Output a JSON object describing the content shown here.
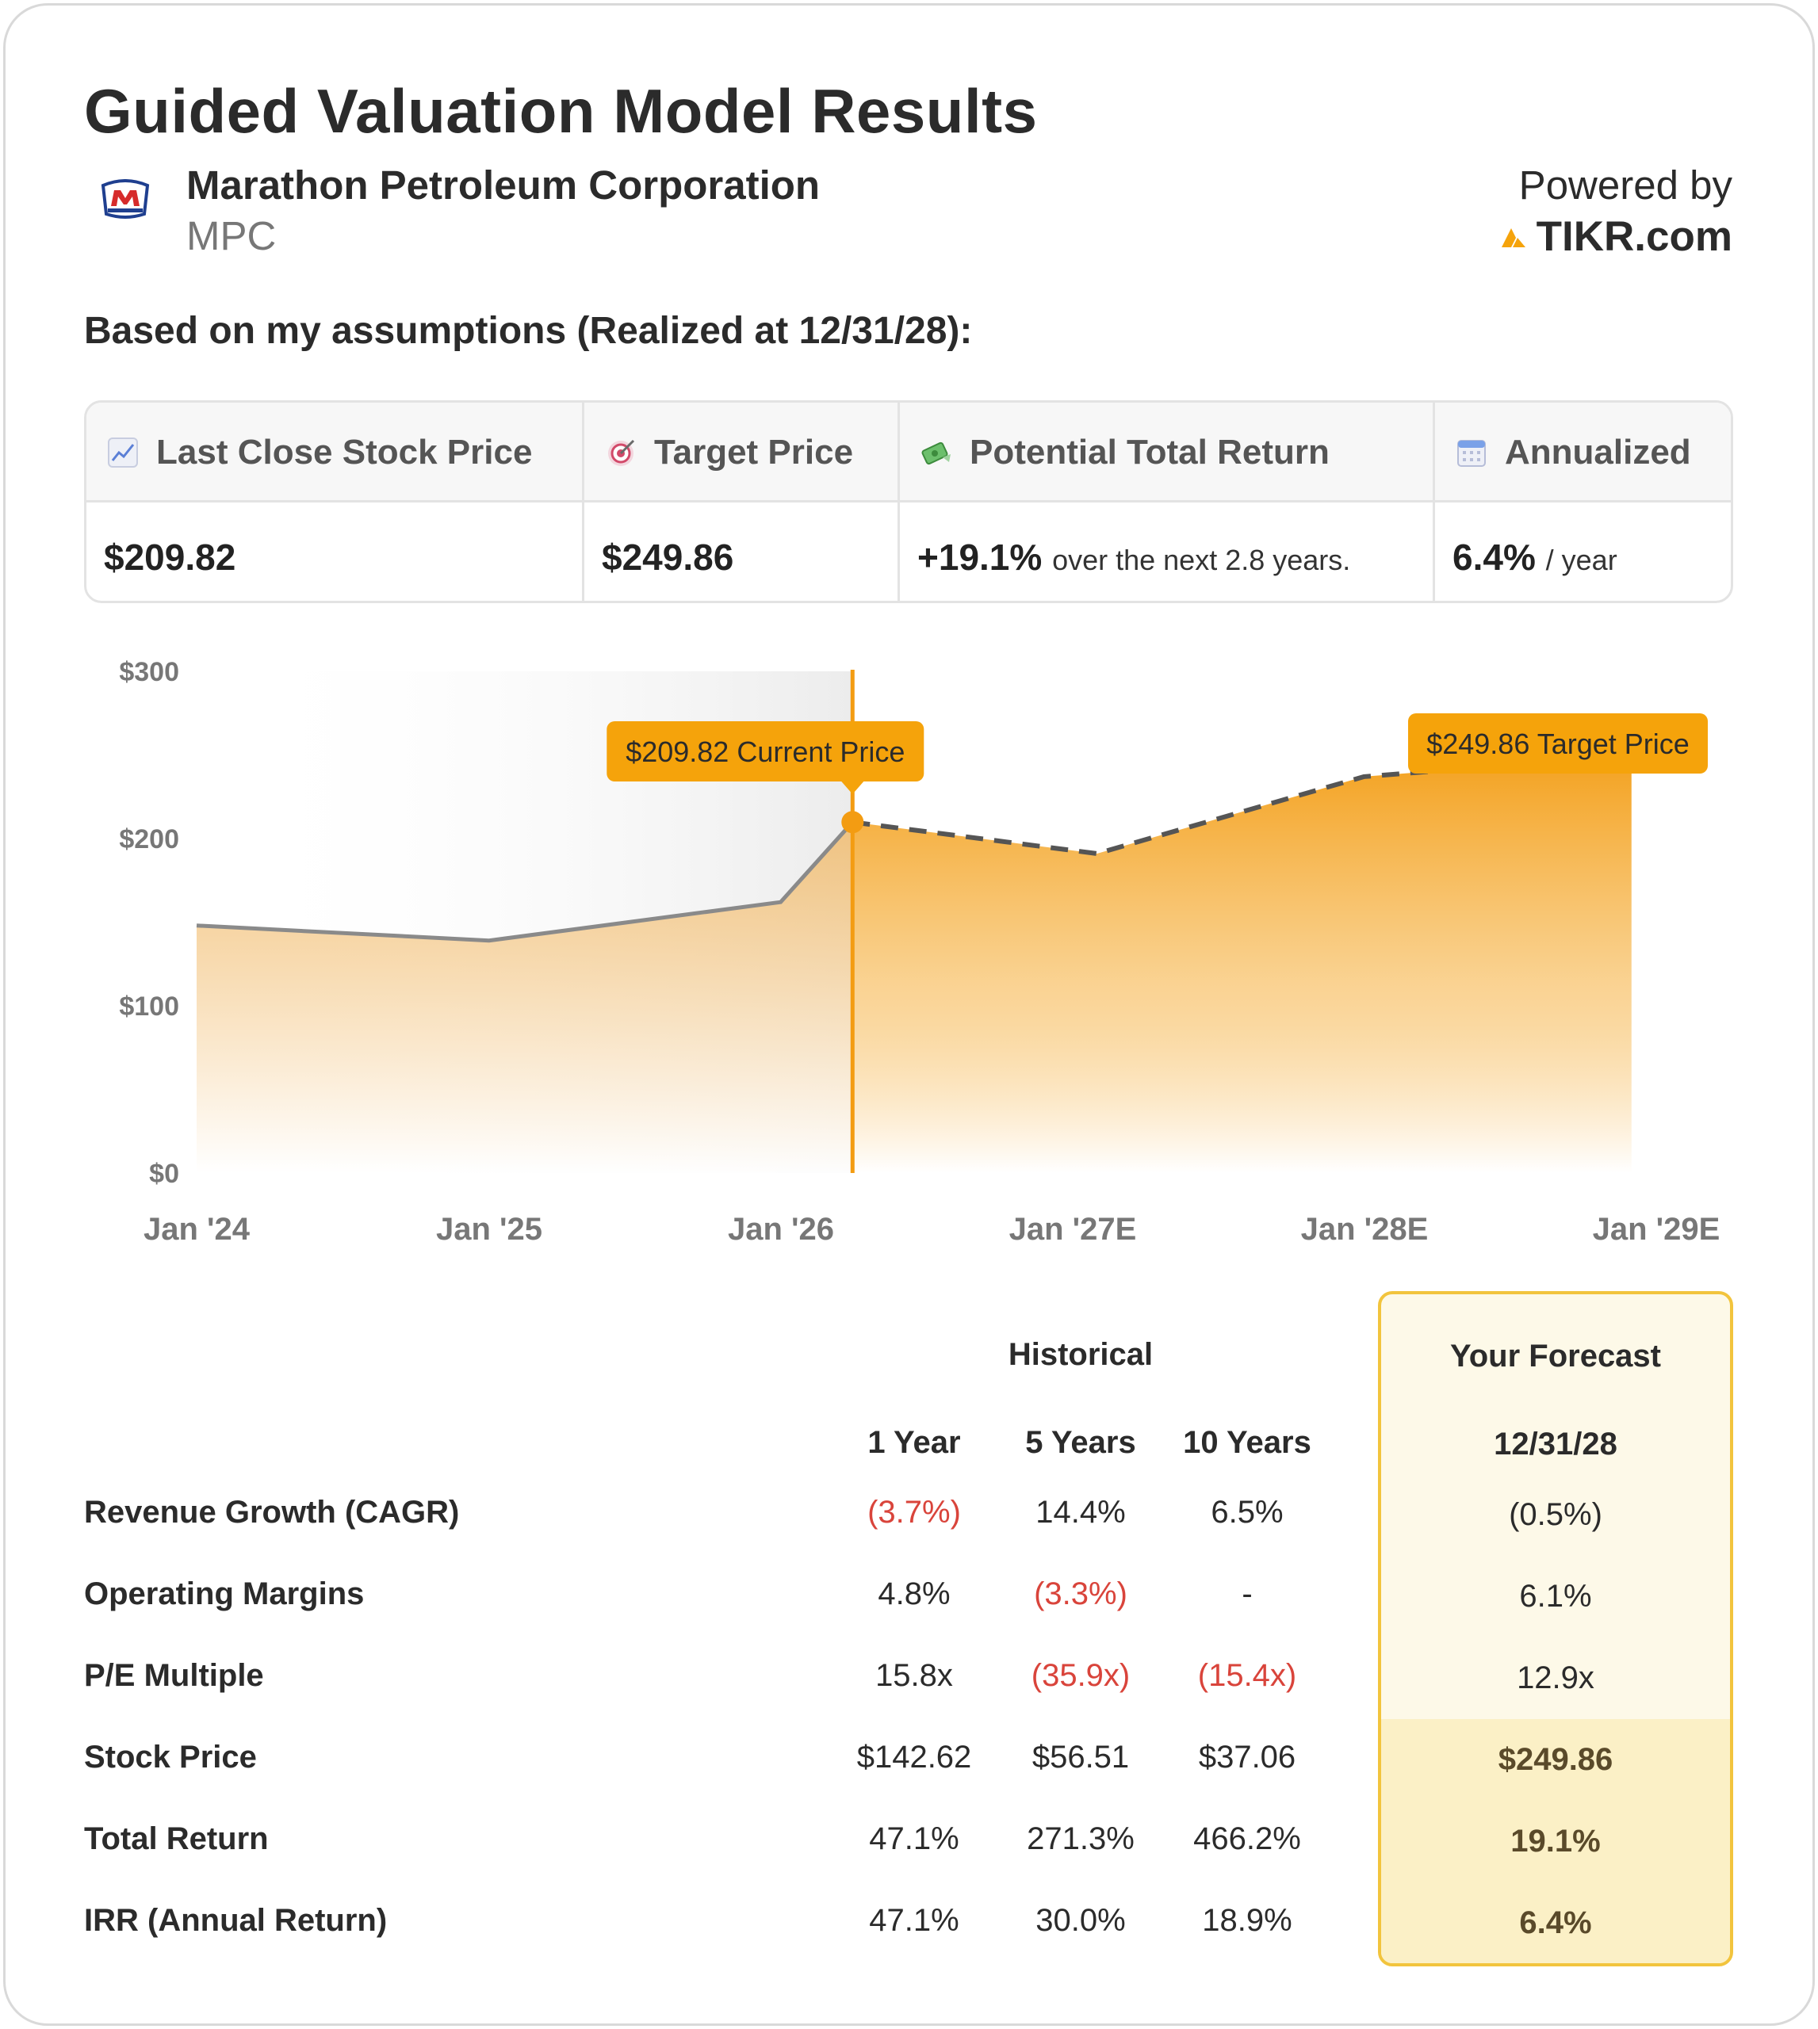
{
  "header": {
    "title": "Guided Valuation Model Results",
    "company": "Marathon Petroleum Corporation",
    "ticker": "MPC",
    "powered_by": "Powered by",
    "brand": "TIKR.com",
    "assumptions": "Based on my assumptions (Realized at 12/31/28):"
  },
  "stats": {
    "last_close_label": "Last Close Stock Price",
    "last_close_value": "$209.82",
    "target_label": "Target Price",
    "target_value": "$249.86",
    "return_label": "Potential Total Return",
    "return_value": "+19.1%",
    "return_note": "over the next 2.8 years.",
    "annualized_label": "Annualized",
    "annualized_value": "6.4%",
    "annualized_note": "/ year"
  },
  "chart_data": {
    "type": "area",
    "y_ticks": [
      "$300",
      "$200",
      "$100",
      "$0"
    ],
    "x_ticks": [
      "Jan '24",
      "Jan '25",
      "Jan '26",
      "Jan '27E",
      "Jan '28E",
      "Jan '29E"
    ],
    "ylim": [
      0,
      300
    ],
    "historical": {
      "x": [
        "2024-01",
        "2025-01",
        "2026-01",
        "2026-04"
      ],
      "y": [
        148,
        139,
        162,
        209.82
      ]
    },
    "forecast": {
      "x": [
        "2026-04",
        "2027-02",
        "2028-01",
        "2028-12"
      ],
      "y": [
        209.82,
        191,
        237,
        249.86
      ]
    },
    "current_marker": {
      "label": "$209.82 Current Price",
      "x": "2026-04",
      "y": 209.82
    },
    "target_marker": {
      "label": "$249.86 Target Price",
      "x": "2028-12",
      "y": 249.86
    },
    "colors": {
      "accent": "#f39c12",
      "label_bg": "#f5a30b",
      "historical_line": "#8a8a8a",
      "forecast_line": "#555555"
    }
  },
  "table": {
    "historical_header": "Historical",
    "forecast_header": "Your Forecast",
    "columns": [
      "1 Year",
      "5 Years",
      "10 Years"
    ],
    "forecast_date": "12/31/28",
    "rows": [
      {
        "label": "Revenue Growth (CAGR)",
        "values": [
          "(3.7%)",
          "14.4%",
          "6.5%"
        ],
        "forecast": "(0.5%)"
      },
      {
        "label": "Operating Margins",
        "values": [
          "4.8%",
          "(3.3%)",
          "-"
        ],
        "forecast": "6.1%"
      },
      {
        "label": "P/E Multiple",
        "values": [
          "15.8x",
          "(35.9x)",
          "(15.4x)"
        ],
        "forecast": "12.9x"
      },
      {
        "label": "Stock Price",
        "values": [
          "$142.62",
          "$56.51",
          "$37.06"
        ],
        "forecast": "$249.86"
      },
      {
        "label": "Total Return",
        "values": [
          "47.1%",
          "271.3%",
          "466.2%"
        ],
        "forecast": "19.1%"
      },
      {
        "label": "IRR (Annual Return)",
        "values": [
          "47.1%",
          "30.0%",
          "18.9%"
        ],
        "forecast": "6.4%"
      }
    ]
  }
}
